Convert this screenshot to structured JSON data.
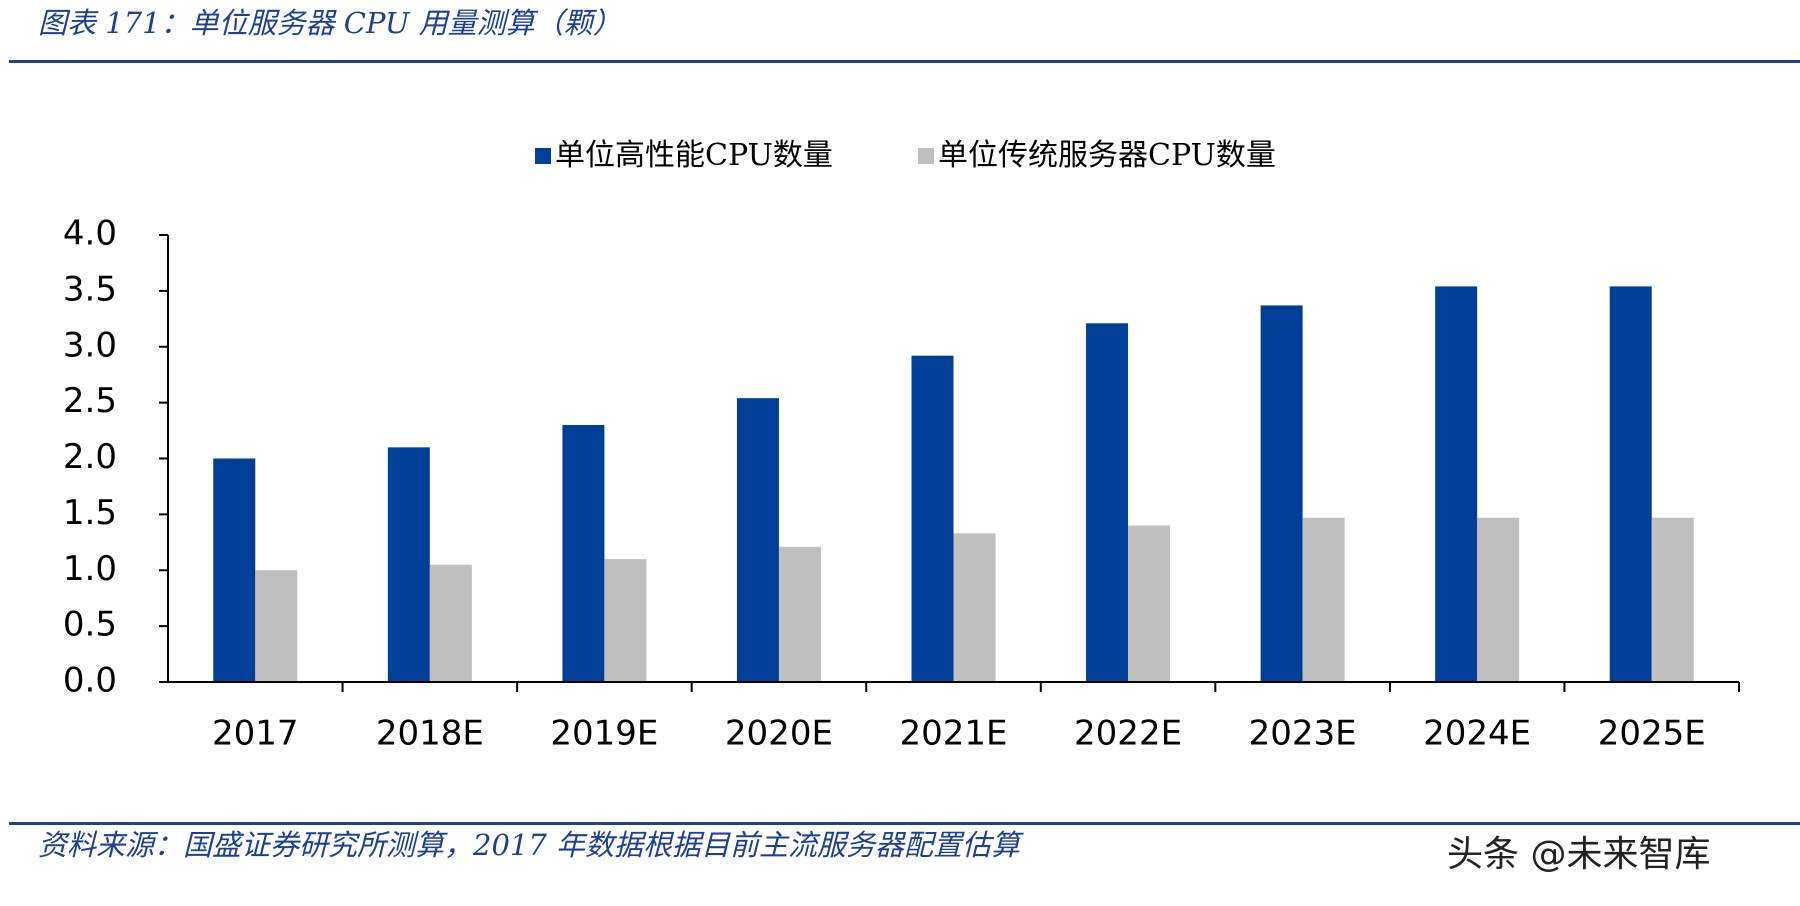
{
  "chart_data": {
    "type": "bar",
    "title": "图表 171：单位服务器 CPU 用量测算（颗）",
    "categories": [
      "2017",
      "2018E",
      "2019E",
      "2020E",
      "2021E",
      "2022E",
      "2023E",
      "2024E",
      "2025E"
    ],
    "series": [
      {
        "name": "单位高性能CPU数量",
        "color": "#003f98",
        "values": [
          2.0,
          2.1,
          2.3,
          2.54,
          2.92,
          3.21,
          3.37,
          3.54,
          3.54
        ]
      },
      {
        "name": "单位传统服务器CPU数量",
        "color": "#bfbfbf",
        "values": [
          1.0,
          1.05,
          1.1,
          1.21,
          1.33,
          1.4,
          1.47,
          1.47,
          1.47
        ]
      }
    ],
    "ylim": [
      0,
      4
    ],
    "yticks": [
      {
        "value": 0,
        "label": "0.0"
      },
      {
        "value": 0.5,
        "label": "0.5"
      },
      {
        "value": 1,
        "label": "1.0"
      },
      {
        "value": 1.5,
        "label": "1.5"
      },
      {
        "value": 2,
        "label": "2.0"
      },
      {
        "value": 2.5,
        "label": "2.5"
      },
      {
        "value": 3,
        "label": "3.0"
      },
      {
        "value": 3.5,
        "label": "3.5"
      },
      {
        "value": 4,
        "label": "4.0"
      }
    ],
    "legend": "top",
    "source": "资料来源：国盛证券研究所测算，2017 年数据根据目前主流服务器配置估算",
    "watermark": "头条 @未来智库"
  }
}
